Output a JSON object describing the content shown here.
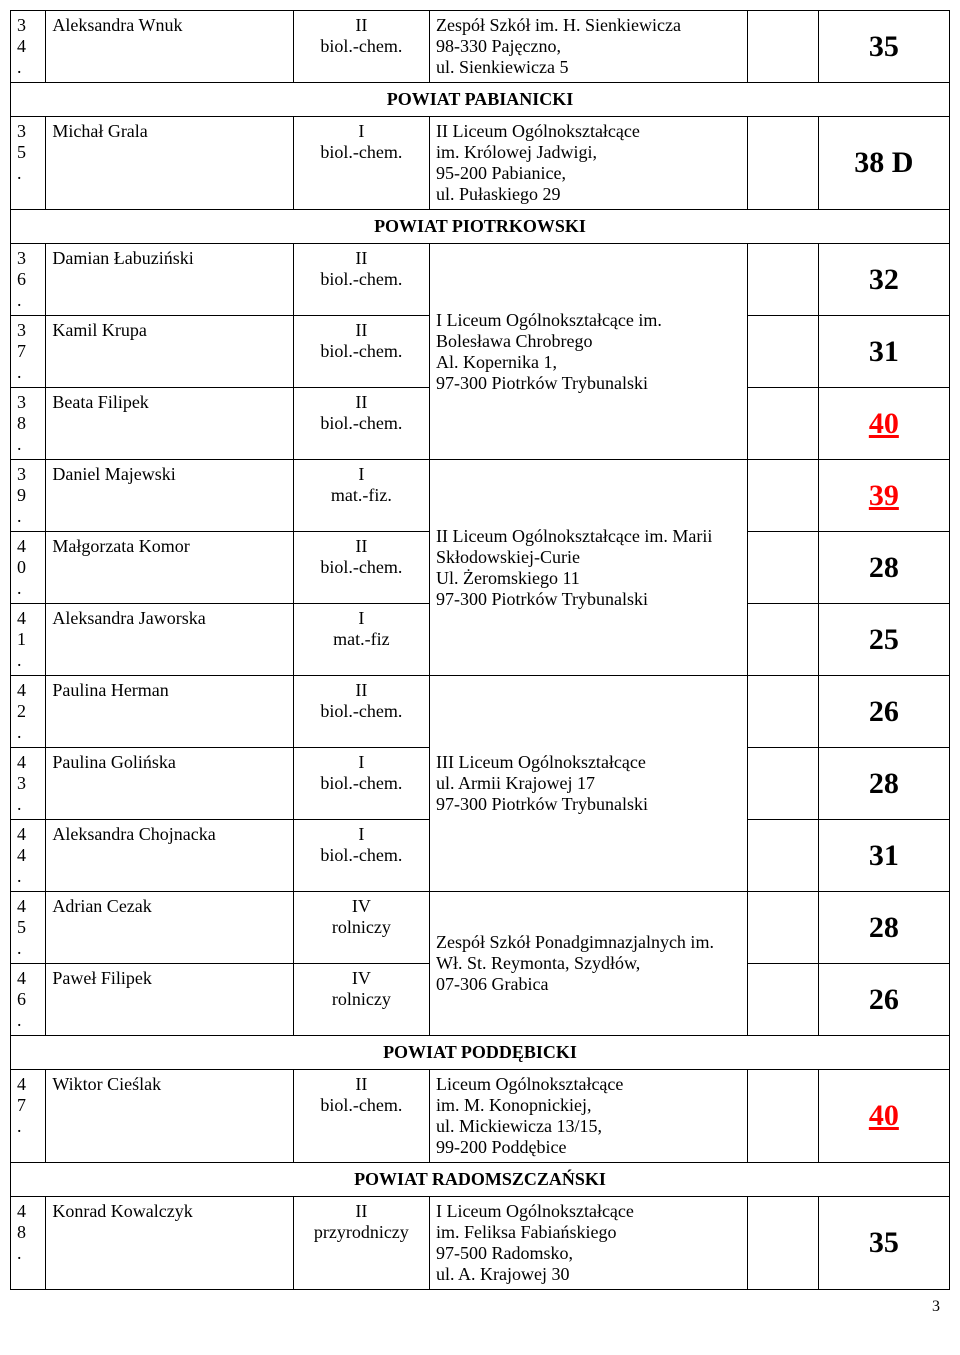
{
  "sections": [
    {
      "header": null,
      "school_rowspan": 1,
      "school": "Zespół Szkół im. H. Sienkiewicza\n98-330 Pajęczno,\nul. Sienkiewicza 5",
      "rows": [
        {
          "num": "3\n4\n.",
          "name": "Aleksandra Wnuk",
          "class": "II\nbiol.-chem.",
          "score": "35",
          "red": false
        }
      ]
    },
    {
      "header": "POWIAT PABIANICKI",
      "school_rowspan": 1,
      "school": "II Liceum Ogólnokształcące\nim. Królowej Jadwigi,\n95-200 Pabianice,\nul. Pułaskiego 29",
      "rows": [
        {
          "num": "3\n5\n.",
          "name": "Michał Grala",
          "class": "I\nbiol.-chem.",
          "score": "38 D",
          "red": false
        }
      ]
    },
    {
      "header": "POWIAT PIOTRKOWSKI",
      "groups": [
        {
          "school": "I Liceum Ogólnokształcące im. Bolesława Chrobrego\nAl. Kopernika 1,\n97-300 Piotrków Trybunalski",
          "rows": [
            {
              "num": "3\n6\n.",
              "name": "Damian Łabuziński",
              "class": "II\nbiol.-chem.",
              "score": "32",
              "red": false
            },
            {
              "num": "3\n7\n.",
              "name": "Kamil Krupa",
              "class": "II\nbiol.-chem.",
              "score": "31",
              "red": false
            },
            {
              "num": "3\n8\n.",
              "name": "Beata Filipek",
              "class": "II\nbiol.-chem.",
              "score": "40",
              "red": true
            }
          ]
        },
        {
          "school": "II Liceum Ogólnokształcące im. Marii Skłodowskiej-Curie\nUl. Żeromskiego 11\n97-300 Piotrków Trybunalski",
          "rows": [
            {
              "num": "3\n9\n.",
              "name": "Daniel Majewski",
              "class": "I\nmat.-fiz.",
              "score": "39",
              "red": true
            },
            {
              "num": "4\n0\n.",
              "name": "Małgorzata Komor",
              "class": "II\nbiol.-chem.",
              "score": "28",
              "red": false
            },
            {
              "num": "4\n1\n.",
              "name": "Aleksandra Jaworska",
              "class": "I\nmat.-fiz",
              "score": "25",
              "red": false
            }
          ]
        },
        {
          "school": "III Liceum Ogólnokształcące\nul. Armii Krajowej 17\n97-300 Piotrków Trybunalski",
          "rows": [
            {
              "num": "4\n2\n.",
              "name": "Paulina Herman",
              "class": "II\nbiol.-chem.",
              "score": "26",
              "red": false
            },
            {
              "num": "4\n3\n.",
              "name": "Paulina Golińska",
              "class": "I\nbiol.-chem.",
              "score": "28",
              "red": false
            },
            {
              "num": "4\n4\n.",
              "name": "Aleksandra Chojnacka",
              "class": "I\nbiol.-chem.",
              "score": "31",
              "red": false
            }
          ]
        },
        {
          "school": "Zespół Szkół Ponadgimnazjalnych im. Wł. St. Reymonta, Szydłów,\n07-306 Grabica",
          "rows": [
            {
              "num": "4\n5\n.",
              "name": "Adrian Cezak",
              "class": "IV\nrolniczy",
              "score": "28",
              "red": false
            },
            {
              "num": "4\n6\n.",
              "name": "Paweł Filipek",
              "class": "IV\nrolniczy",
              "score": "26",
              "red": false
            }
          ]
        }
      ]
    },
    {
      "header": "POWIAT PODDĘBICKI",
      "school_rowspan": 1,
      "school": "Liceum Ogólnokształcące\nim. M. Konopnickiej,\nul. Mickiewicza 13/15,\n99-200 Poddębice",
      "rows": [
        {
          "num": "4\n7\n.",
          "name": "Wiktor Cieślak",
          "class": "II\nbiol.-chem.",
          "score": "40",
          "red": true
        }
      ]
    },
    {
      "header": "POWIAT RADOMSZCZAŃSKI",
      "school_rowspan": 1,
      "school": "I Liceum Ogólnokształcące\nim. Feliksa Fabiańskiego\n97-500 Radomsko,\nul. A. Krajowej 30",
      "rows": [
        {
          "num": "4\n8\n.",
          "name": "Konrad Kowalczyk",
          "class": "II\nprzyrodniczy",
          "score": "35",
          "red": false
        }
      ]
    }
  ],
  "page_number": "3"
}
